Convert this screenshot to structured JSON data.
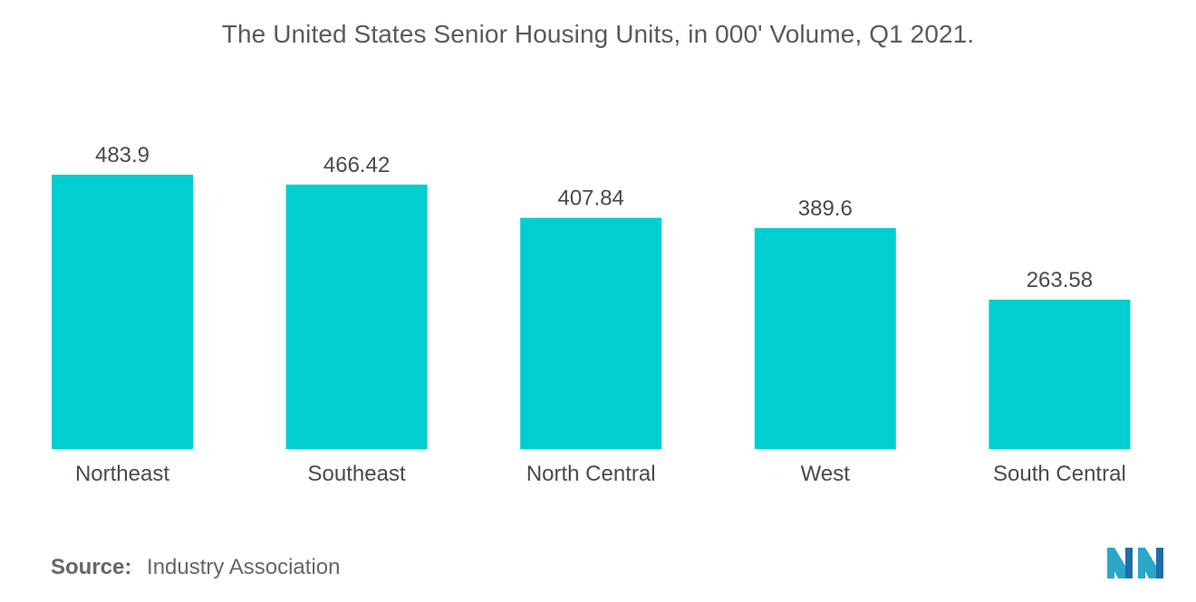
{
  "chart_data": {
    "type": "bar",
    "title": "The United States Senior Housing Units, in 000' Volume, Q1 2021.",
    "categories": [
      "Northeast",
      "Southeast",
      "North Central",
      "West",
      "South Central"
    ],
    "values": [
      483.9,
      466.42,
      407.84,
      389.6,
      263.58
    ],
    "value_labels": [
      "483.9",
      "466.42",
      "407.84",
      "389.6",
      "263.58"
    ],
    "xlabel": "",
    "ylabel": "",
    "ylim": [
      0,
      483.9
    ],
    "grid": false,
    "legend": "none",
    "bar_color": "#00CED1"
  },
  "source": {
    "label": "Source:",
    "text": "Industry Association"
  },
  "logo": {
    "icon": "mordor-intelligence-logo",
    "colors": [
      "#2aa6c9",
      "#1e6fa8"
    ]
  }
}
